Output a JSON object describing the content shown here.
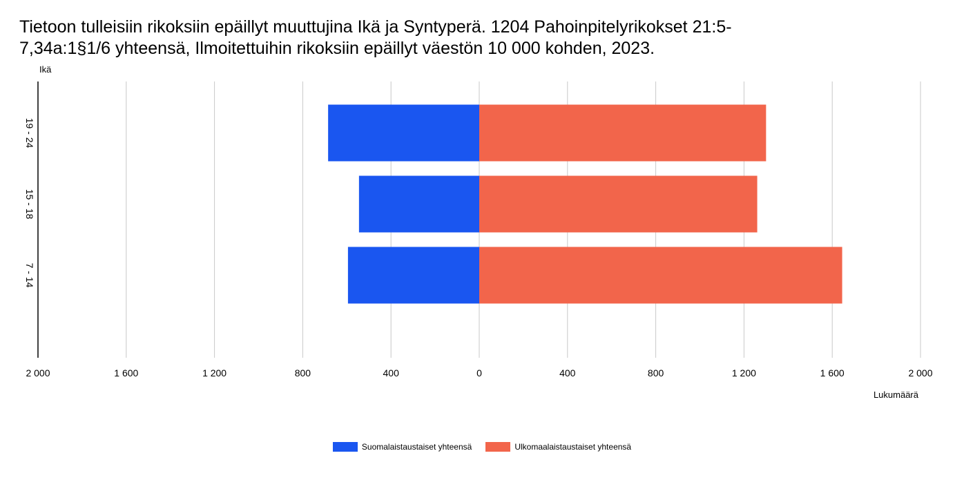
{
  "title_lines": [
    "Tietoon tulleisiin rikoksiin epäillyt muuttujina Ikä ja Syntyperä. 1204 Pahoinpitelyrikokset 21:5-",
    "7,34a:1§1/6 yhteensä, Ilmoitettuihin rikoksiin epäillyt väestön 10 000 kohden, 2023."
  ],
  "chart_data": {
    "type": "bar",
    "orientation": "horizontal",
    "layout": "diverging",
    "title": "Tietoon tulleisiin rikoksiin epäillyt muuttujina Ikä ja Syntyperä. 1204 Pahoinpitelyrikokset 21:5-7,34a:1§1/6 yhteensä, Ilmoitettuihin rikoksiin epäillyt väestön 10 000 kohden, 2023.",
    "ylabel": "Ikä",
    "xlabel": "Lukumäärä",
    "categories": [
      "19 - 24",
      "15 - 18",
      "7 - 14"
    ],
    "series": [
      {
        "name": "Suomalaistaustaiset yhteensä",
        "color": "#1a56f0",
        "side": "left",
        "values": [
          685,
          545,
          595
        ]
      },
      {
        "name": "Ulkomaalaistaustaiset yhteensä",
        "color": "#f2654b",
        "side": "right",
        "values": [
          1300,
          1260,
          1645
        ]
      }
    ],
    "xlim": [
      -2000,
      2000
    ],
    "xticks": [
      -2000,
      -1600,
      -1200,
      -800,
      -400,
      0,
      400,
      800,
      1200,
      1600,
      2000
    ],
    "xtick_labels": [
      "2 000",
      "1 600",
      "1 200",
      "800",
      "400",
      "0",
      "400",
      "800",
      "1 200",
      "1 600",
      "2 000"
    ],
    "grid": true,
    "legend_position": "bottom-center"
  }
}
